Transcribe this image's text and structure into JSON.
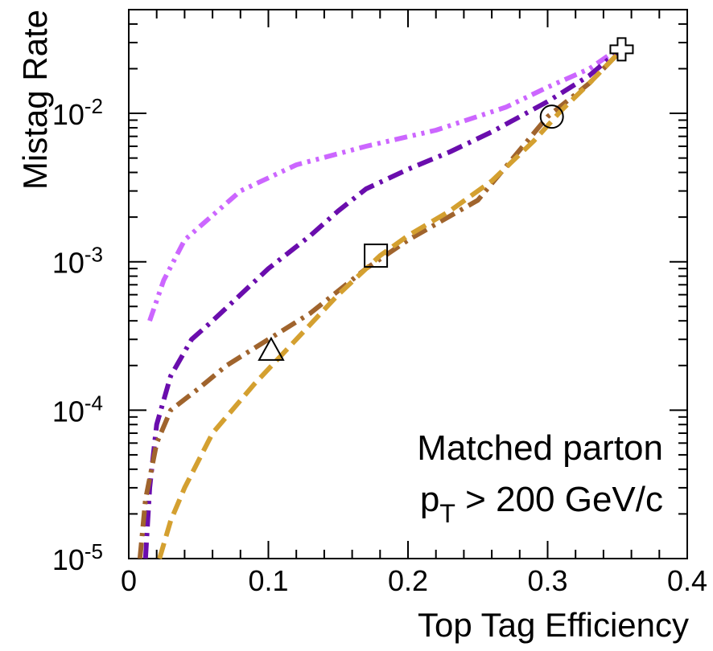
{
  "chart_data": {
    "type": "line",
    "xlabel": "Top Tag Efficiency",
    "ylabel": "Mistag Rate",
    "xlim": [
      0,
      0.4
    ],
    "ylim": [
      1e-05,
      0.05
    ],
    "y_scale": "log",
    "x_ticks": [
      {
        "value": 0,
        "label": "0"
      },
      {
        "value": 0.1,
        "label": "0.1"
      },
      {
        "value": 0.2,
        "label": "0.2"
      },
      {
        "value": 0.3,
        "label": "0.3"
      },
      {
        "value": 0.4,
        "label": "0.4"
      }
    ],
    "y_ticks": [
      {
        "value": 0.0001,
        "base": "10",
        "exp": "-4"
      },
      {
        "value": 0.001,
        "base": "10",
        "exp": "-3"
      },
      {
        "value": 0.01,
        "base": "10",
        "exp": "-2"
      }
    ],
    "y_origin_label": {
      "value": 1e-05,
      "base": "10",
      "exp": "-5"
    },
    "annotation": {
      "line1": "Matched parton",
      "line2_main": "p",
      "line2_sub": "T",
      "line2_rest": " > 200 GeV/c"
    },
    "series": [
      {
        "color": "#cc66ff",
        "dash": "dash-dot-dot",
        "x": [
          0.015,
          0.025,
          0.04,
          0.05,
          0.08,
          0.12,
          0.17,
          0.22,
          0.27,
          0.3,
          0.33,
          0.35
        ],
        "y": [
          0.0004,
          0.00075,
          0.0014,
          0.0017,
          0.003,
          0.0045,
          0.006,
          0.0077,
          0.011,
          0.015,
          0.02,
          0.027
        ]
      },
      {
        "color": "#6a0dad",
        "dash": "dash-dot",
        "x": [
          0.012,
          0.015,
          0.02,
          0.03,
          0.045,
          0.06,
          0.08,
          0.1,
          0.13,
          0.15,
          0.17,
          0.2,
          0.23,
          0.26,
          0.3,
          0.33,
          0.35
        ],
        "y": [
          1e-05,
          3e-05,
          8e-05,
          0.00017,
          0.0003,
          0.0004,
          0.0006,
          0.0009,
          0.0015,
          0.0022,
          0.0031,
          0.0042,
          0.0055,
          0.0075,
          0.012,
          0.018,
          0.026
        ]
      },
      {
        "color": "#a0642d",
        "dash": "dash-dot",
        "x": [
          0.008,
          0.012,
          0.02,
          0.03,
          0.05,
          0.07,
          0.1,
          0.13,
          0.17,
          0.2,
          0.25,
          0.3,
          0.33,
          0.35
        ],
        "y": [
          1e-05,
          2.5e-05,
          6e-05,
          0.0001,
          0.00014,
          0.0002,
          0.0003,
          0.00045,
          0.0009,
          0.0014,
          0.0026,
          0.0095,
          0.016,
          0.025
        ]
      },
      {
        "color": "#d4a030",
        "dash": "dashed",
        "x": [
          0.022,
          0.03,
          0.04,
          0.06,
          0.09,
          0.12,
          0.15,
          0.18,
          0.2,
          0.23,
          0.26,
          0.29,
          0.31,
          0.33,
          0.35
        ],
        "y": [
          1e-05,
          1.8e-05,
          3e-05,
          7e-05,
          0.00015,
          0.0003,
          0.0006,
          0.0011,
          0.0015,
          0.0022,
          0.0035,
          0.0065,
          0.0105,
          0.016,
          0.025
        ]
      }
    ],
    "markers": [
      {
        "shape": "triangle",
        "x": 0.102,
        "y": 0.00025
      },
      {
        "shape": "square",
        "x": 0.177,
        "y": 0.0011
      },
      {
        "shape": "circle",
        "x": 0.303,
        "y": 0.0095
      },
      {
        "shape": "cross",
        "x": 0.353,
        "y": 0.027
      }
    ]
  }
}
